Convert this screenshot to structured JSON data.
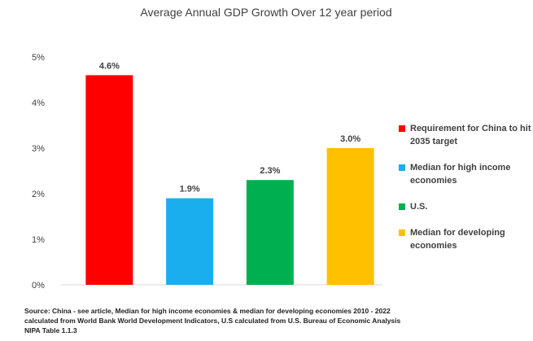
{
  "chart_data": {
    "type": "bar",
    "title": "Average Annual GDP Growth Over 12 year period",
    "categories": [
      "Requirement for China to hit 2035 target",
      "Median for high income economies",
      "U.S.",
      "Median for developing economies"
    ],
    "values": [
      4.6,
      1.9,
      2.3,
      3.0
    ],
    "data_labels": [
      "4.6%",
      "1.9%",
      "2.3%",
      "3.0%"
    ],
    "colors": [
      "#ff0000",
      "#1aaeef",
      "#00b050",
      "#ffc000"
    ],
    "ylim": [
      0,
      5
    ],
    "yticks": [
      0,
      1,
      2,
      3,
      4,
      5
    ],
    "ytick_labels": [
      "0%",
      "1%",
      "2%",
      "3%",
      "4%",
      "5%"
    ],
    "xlabel": "",
    "ylabel": "",
    "legend_position": "right"
  },
  "legend": {
    "items": [
      {
        "label": "Requirement for China to hit 2035 target",
        "color": "#ff0000"
      },
      {
        "label": "Median for high income economies",
        "color": "#1aaeef"
      },
      {
        "label": "U.S.",
        "color": "#00b050"
      },
      {
        "label": "Median for developing economies",
        "color": "#ffc000"
      }
    ]
  },
  "source_note": "Source: China - see article, Median for high income economies & median for developing economies 2010 - 2022\ncalculated from World Bank World Development Indicators, U.S calculated from U.S. Bureau of Economic Analysis\nNIPA Table 1.1.3"
}
